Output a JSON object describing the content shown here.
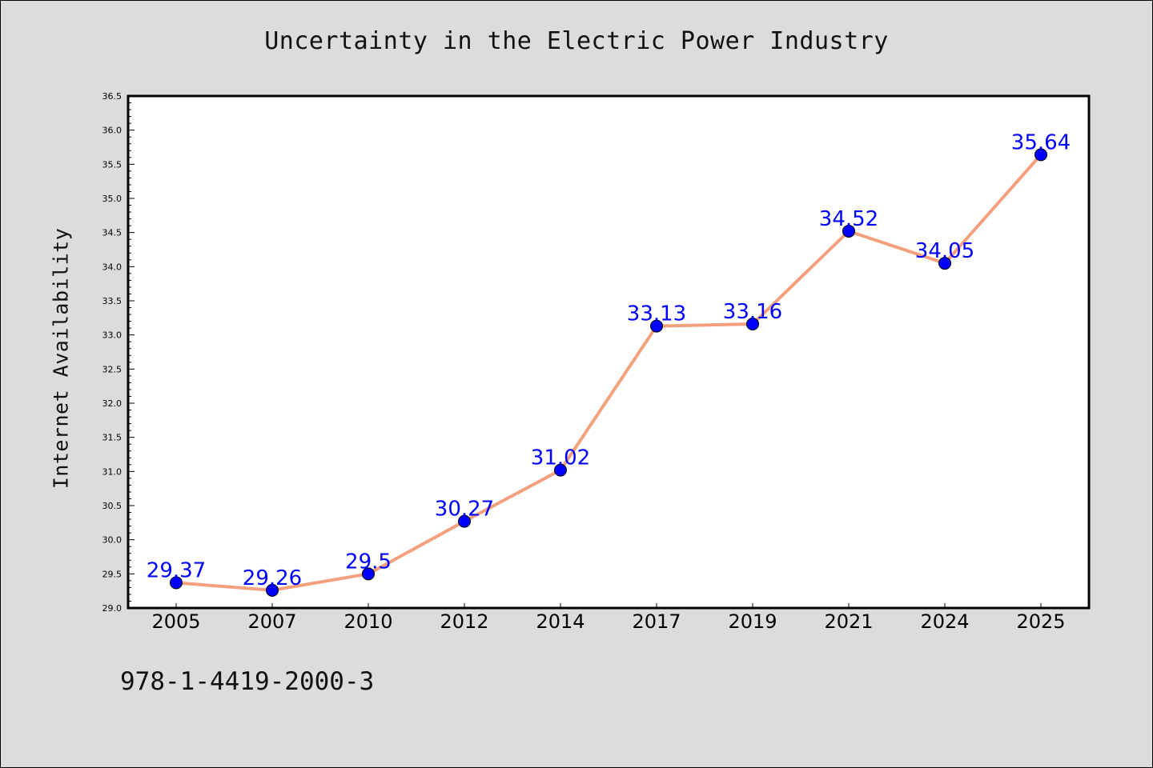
{
  "chart_data": {
    "type": "line",
    "title": "Uncertainty in the Electric Power Industry",
    "xlabel": "",
    "ylabel": "Internet Availability",
    "categories": [
      "2005",
      "2007",
      "2010",
      "2012",
      "2014",
      "2017",
      "2019",
      "2021",
      "2024",
      "2025"
    ],
    "values": [
      29.37,
      29.26,
      29.5,
      30.27,
      31.02,
      33.13,
      33.16,
      34.52,
      34.05,
      35.64
    ],
    "data_labels": [
      "29.37",
      "29.26",
      "29.5",
      "30.27",
      "31.02",
      "33.13",
      "33.16",
      "34.52",
      "34.05",
      "35.64"
    ],
    "ylim": [
      29.0,
      36.5
    ],
    "y_ticks": [
      "29.0",
      "29.5",
      "30.0",
      "30.5",
      "31.0",
      "31.5",
      "32.0",
      "32.5",
      "33.0",
      "33.5",
      "34.0",
      "34.5",
      "35.0",
      "35.5",
      "36.0",
      "36.5"
    ],
    "grid": false,
    "colors": {
      "line": "#f4a07e",
      "marker": "#0000ff",
      "data_label": "#0000ff",
      "plot_background": "#ffffff",
      "figure_background": "#dcdcdc"
    }
  },
  "footer": {
    "code": "978-1-4419-2000-3"
  }
}
